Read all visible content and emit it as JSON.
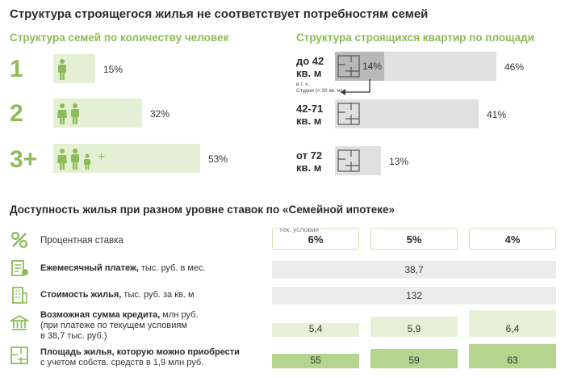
{
  "title": "Структура строящегося жилья не соответствует потребностям семей",
  "families": {
    "subtitle": "Структура семей по количеству человек",
    "rows": [
      {
        "label": "1",
        "pct": 15,
        "pct_text": "15%"
      },
      {
        "label": "2",
        "pct": 32,
        "pct_text": "32%"
      },
      {
        "label": "3+",
        "pct": 53,
        "pct_text": "53%"
      }
    ],
    "plus": "+"
  },
  "apartments": {
    "subtitle": "Структура строящихся квартир по площади",
    "rows": [
      {
        "label_1": "до 42",
        "label_2": "кв. м",
        "pct": 46,
        "pct_text": "46%"
      },
      {
        "label_1": "42-71",
        "label_2": "кв. м",
        "pct": 41,
        "pct_text": "41%"
      },
      {
        "label_1": "от 72",
        "label_2": "кв. м",
        "pct": 13,
        "pct_text": "13%"
      }
    ],
    "studio_pct": 14,
    "studio_pct_text": "14%",
    "studio_note_1": "в т. ч.",
    "studio_note_2": "Студии (< 30 кв. м)"
  },
  "mortgage": {
    "title": "Доступность жилья при разном уровне ставок по «Семейной ипотеке»",
    "rate_label": "Процентная ставка",
    "current_note": "тек. условия",
    "rates": [
      "6%",
      "5%",
      "4%"
    ],
    "monthly": {
      "label_bold": "Ежемесячный платеж,",
      "label_rest": " тыс. руб. в мес.",
      "value": "38,7"
    },
    "price": {
      "label_bold": "Стоимость жилья,",
      "label_rest": " тыс. руб. за кв. м",
      "value": "132"
    },
    "loan": {
      "label_bold": "Возможная сумма кредита,",
      "label_rest": " млн руб.",
      "label_line2": "(при платеже по текущем условиям",
      "label_line3": "в 38,7 тыс. руб.)",
      "values": [
        "5,4",
        "5,9",
        "6,4"
      ]
    },
    "area": {
      "label_bold": "Площадь жилья, которую можно приобрести",
      "label_line2": "с учетом собств. средств в 1,9 млн руб.",
      "values": [
        "55",
        "59",
        "63"
      ]
    }
  },
  "chart_data": [
    {
      "type": "bar",
      "title": "Структура семей по количеству человек",
      "categories": [
        "1",
        "2",
        "3+"
      ],
      "values": [
        15,
        32,
        53
      ],
      "unit": "%"
    },
    {
      "type": "bar",
      "title": "Структура строящихся квартир по площади",
      "categories": [
        "до 42 кв. м",
        "42-71 кв. м",
        "от 72 кв. м"
      ],
      "values": [
        46,
        41,
        13
      ],
      "unit": "%",
      "annotation": "в т. ч. Студии (< 30 кв. м): 14%"
    },
    {
      "type": "table",
      "title": "Доступность жилья при разном уровне ставок по «Семейной ипотеке»",
      "columns": [
        "6%",
        "5%",
        "4%"
      ],
      "rows": [
        {
          "name": "Ежемесячный платеж, тыс. руб. в мес.",
          "values": [
            38.7,
            38.7,
            38.7
          ]
        },
        {
          "name": "Стоимость жилья, тыс. руб. за кв. м",
          "values": [
            132,
            132,
            132
          ]
        },
        {
          "name": "Возможная сумма кредита, млн руб.",
          "values": [
            5.4,
            5.9,
            6.4
          ]
        },
        {
          "name": "Площадь жилья, которую можно приобрести",
          "values": [
            55,
            59,
            63
          ]
        }
      ]
    }
  ],
  "colors": {
    "green": "#8dbb58",
    "light_green": "#e4f0d3",
    "gray": "#e0e0e0",
    "dark_gray": "#b8b8b8"
  }
}
